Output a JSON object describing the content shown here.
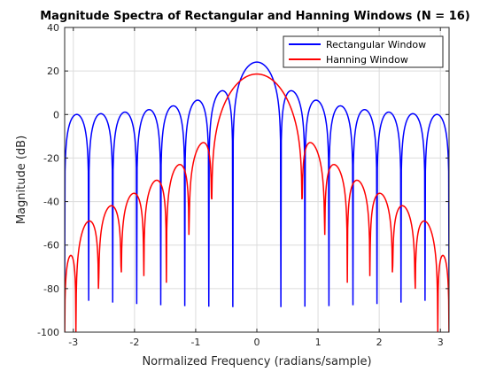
{
  "chart_data": {
    "type": "line",
    "title": "Magnitude Spectra of Rectangular and Hanning Windows (N = 16)",
    "xlabel": "Normalized Frequency (radians/sample)",
    "ylabel": "Magnitude (dB)",
    "xlim": [
      -3.1416,
      3.1416
    ],
    "ylim": [
      -100,
      40
    ],
    "xticks": [
      -3,
      -2,
      -1,
      0,
      1,
      2,
      3
    ],
    "yticks": [
      -100,
      -80,
      -60,
      -40,
      -20,
      0,
      20,
      40
    ],
    "grid": true,
    "legend_placement": "top-right",
    "window_length": 16,
    "series": [
      {
        "name": "Rectangular Window",
        "color": "#0000ff",
        "function": "rectangular"
      },
      {
        "name": "Hanning Window",
        "color": "#ff0000",
        "function": "hanning"
      }
    ]
  }
}
